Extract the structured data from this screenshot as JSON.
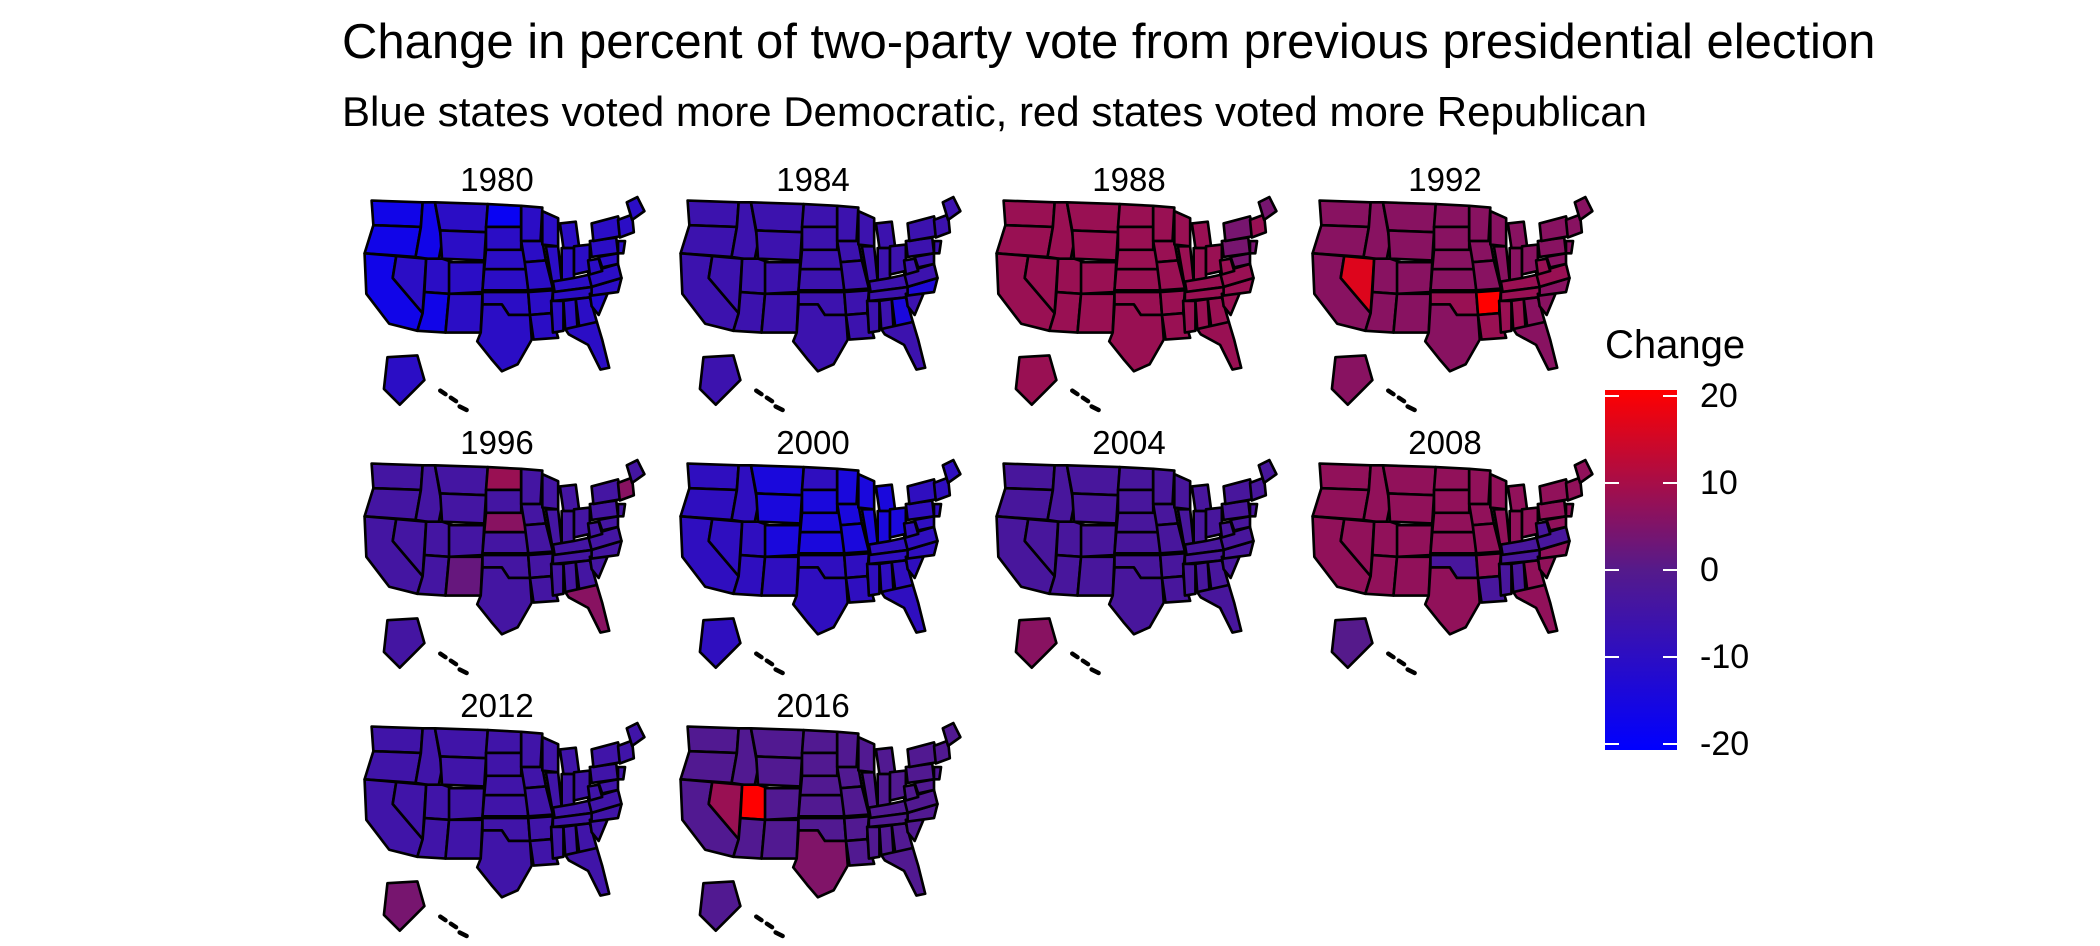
{
  "title": "Change in percent of two-party vote from previous presidential election",
  "subtitle": "Blue states voted more Democratic, red states voted more Republican",
  "legend": {
    "title": "Change",
    "min": -20,
    "max": 20,
    "low_color": "#0000ff",
    "mid_color": "#551a8b",
    "high_color": "#ff0000",
    "ticks": [
      "20",
      "10",
      "0",
      "-10",
      "-20"
    ],
    "tick_values": [
      20,
      10,
      0,
      -10,
      -20
    ]
  },
  "panels": [
    {
      "year": "1980",
      "base": -10,
      "notes": {
        "west": -16,
        "nd": -18,
        "sc": -12
      }
    },
    {
      "year": "1984",
      "base": -6,
      "notes": {
        "ga": -14,
        "nc": -13
      }
    },
    {
      "year": "1988",
      "base": 8,
      "notes": {
        "northeast": 4
      }
    },
    {
      "year": "1992",
      "base": 6,
      "notes": {
        "nv": 16,
        "ar": 20,
        "south": 8
      }
    },
    {
      "year": "1996",
      "base": -4,
      "notes": {
        "nd": 8,
        "fl": 6,
        "nm": 2,
        "ne": 6
      }
    },
    {
      "year": "2000",
      "base": -9,
      "notes": {
        "center": -14
      }
    },
    {
      "year": "2004",
      "base": -3,
      "notes": {
        "ak": 6
      }
    },
    {
      "year": "2008",
      "base": 7,
      "notes": {
        "south": -3,
        "ak": 0
      }
    },
    {
      "year": "2012",
      "base": -5,
      "notes": {
        "ak": 4
      }
    },
    {
      "year": "2016",
      "base": -1,
      "notes": {
        "ut": 20,
        "nv": 8,
        "tx": 5
      }
    }
  ]
}
